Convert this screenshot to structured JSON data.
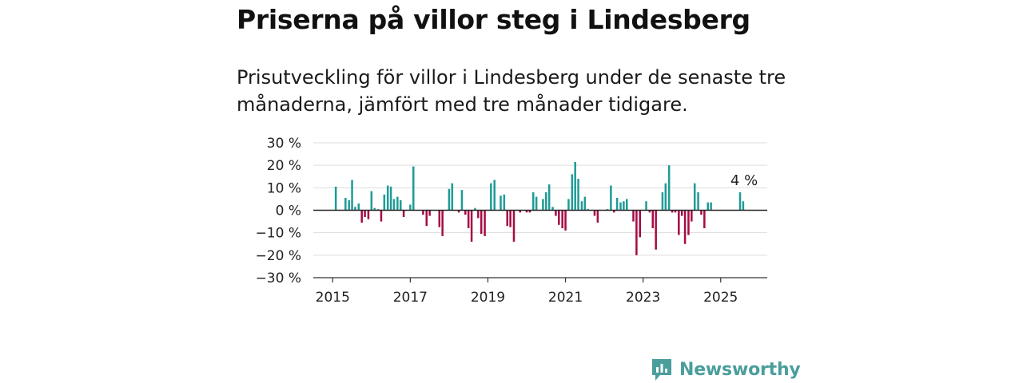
{
  "header": {
    "title": "Priserna på villor steg i Lindesberg",
    "subtitle": "Prisutveckling för villor i Lindesberg under de senaste tre månaderna, jämfört med tre månader tidigare."
  },
  "brand": {
    "name": "Newsworthy",
    "color": "#4a9e9c",
    "icon": "bar-chart-bubble-icon"
  },
  "chart_data": {
    "type": "bar",
    "title": "",
    "xlabel": "",
    "ylabel": "",
    "ylim": [
      -30,
      30
    ],
    "yticks": [
      30,
      20,
      10,
      0,
      -10,
      -20,
      -30
    ],
    "ytick_labels": [
      "30 %",
      "20 %",
      "10 %",
      "0 %",
      "−10 %",
      "−20 %",
      "−30 %"
    ],
    "xlim": [
      2014.5,
      2026.2
    ],
    "xticks": [
      2015,
      2017,
      2019,
      2021,
      2023,
      2025
    ],
    "xtick_labels": [
      "2015",
      "2017",
      "2019",
      "2021",
      "2023",
      "2025"
    ],
    "grid": true,
    "legend": "none",
    "colors": {
      "positive": "#1f9b97",
      "negative": "#a50c45"
    },
    "annotation": {
      "x": 2025.58,
      "y": 4,
      "text": "4 %"
    },
    "x": [
      2015.0,
      2015.08,
      2015.17,
      2015.25,
      2015.33,
      2015.42,
      2015.5,
      2015.58,
      2015.67,
      2015.75,
      2015.83,
      2015.92,
      2016.0,
      2016.08,
      2016.17,
      2016.25,
      2016.33,
      2016.42,
      2016.5,
      2016.58,
      2016.67,
      2016.75,
      2016.83,
      2016.92,
      2017.0,
      2017.08,
      2017.17,
      2017.25,
      2017.33,
      2017.42,
      2017.5,
      2017.58,
      2017.67,
      2017.75,
      2017.83,
      2017.92,
      2018.0,
      2018.08,
      2018.17,
      2018.25,
      2018.33,
      2018.42,
      2018.5,
      2018.58,
      2018.67,
      2018.75,
      2018.83,
      2018.92,
      2019.0,
      2019.08,
      2019.17,
      2019.25,
      2019.33,
      2019.42,
      2019.5,
      2019.58,
      2019.67,
      2019.75,
      2019.83,
      2019.92,
      2020.0,
      2020.08,
      2020.17,
      2020.25,
      2020.33,
      2020.42,
      2020.5,
      2020.58,
      2020.67,
      2020.75,
      2020.83,
      2020.92,
      2021.0,
      2021.08,
      2021.17,
      2021.25,
      2021.33,
      2021.42,
      2021.5,
      2021.58,
      2021.67,
      2021.75,
      2021.83,
      2021.92,
      2022.0,
      2022.08,
      2022.17,
      2022.25,
      2022.33,
      2022.42,
      2022.5,
      2022.58,
      2022.67,
      2022.75,
      2022.83,
      2022.92,
      2023.0,
      2023.08,
      2023.17,
      2023.25,
      2023.33,
      2023.42,
      2023.5,
      2023.58,
      2023.67,
      2023.75,
      2023.83,
      2023.92,
      2024.0,
      2024.08,
      2024.17,
      2024.25,
      2024.33,
      2024.42,
      2024.5,
      2024.58,
      2024.67,
      2024.75,
      2024.83,
      2024.92,
      2025.0,
      2025.08,
      2025.17,
      2025.25,
      2025.33,
      2025.42,
      2025.5,
      2025.58
    ],
    "values": [
      0,
      10.5,
      0,
      0,
      5.5,
      4.5,
      13.5,
      1.5,
      3,
      -5.5,
      -3,
      -4,
      8.5,
      1,
      0.5,
      -5,
      7,
      11,
      10.5,
      5,
      6,
      4.5,
      -3,
      0,
      2.5,
      19.5,
      0,
      0,
      -2,
      -7,
      -2.5,
      0,
      0,
      -7.5,
      -11.5,
      0,
      9.5,
      12,
      0,
      -1,
      9,
      -2,
      -8,
      -14,
      1,
      -3.5,
      -10.5,
      -11.5,
      0,
      12,
      13.5,
      0,
      6.5,
      7,
      -7,
      -7.5,
      -14,
      0,
      -1,
      0,
      -1,
      -1,
      8,
      6,
      0,
      5,
      8,
      11.5,
      1.5,
      -2.5,
      -6.5,
      -8,
      -9,
      5,
      16,
      21.5,
      14,
      4,
      6,
      0.5,
      0,
      -2.5,
      -5.5,
      0,
      0,
      0.5,
      11,
      -1,
      5.5,
      3.5,
      4,
      5,
      0,
      -5,
      -20,
      -12,
      0,
      4,
      -1,
      -8,
      -17.5,
      0,
      8,
      12,
      20,
      -1,
      -1,
      -11,
      -2.5,
      -15,
      -11,
      -5,
      12,
      8,
      -2,
      -8,
      3.5,
      3.5,
      0,
      0,
      0,
      0,
      0,
      0,
      0,
      0,
      8,
      4
    ]
  }
}
